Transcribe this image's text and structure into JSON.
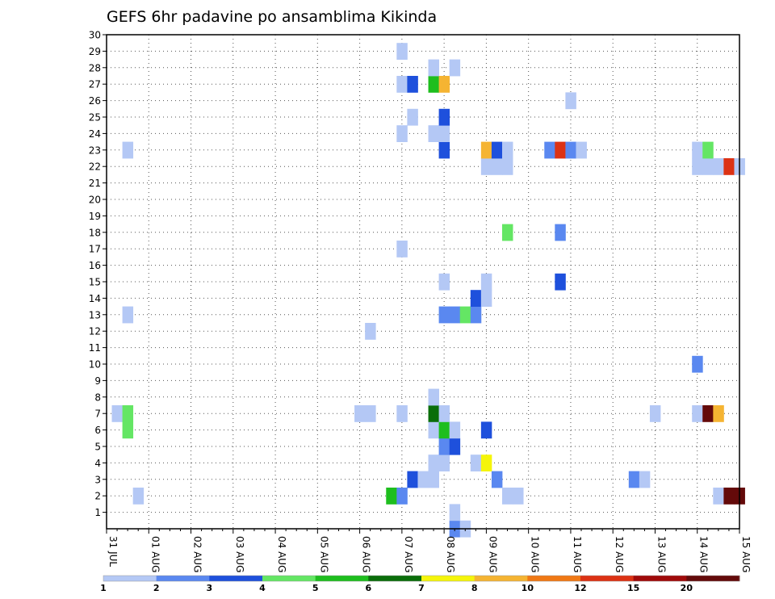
{
  "chart_data": {
    "type": "heatmap",
    "title": "GEFS 6hr padavine po ansamblima Kikinda",
    "xlabel": "",
    "ylabel": "",
    "x_tick_labels": [
      "31 JUL",
      "01 AUG",
      "02 AUG",
      "03 AUG",
      "04 AUG",
      "05 AUG",
      "06 AUG",
      "07 AUG",
      "08 AUG",
      "09 AUG",
      "10 AUG",
      "11 AUG",
      "12 AUG",
      "13 AUG",
      "14 AUG",
      "15 AUG"
    ],
    "y_tick_labels": [
      "1",
      "2",
      "3",
      "4",
      "5",
      "6",
      "7",
      "8",
      "9",
      "10",
      "11",
      "12",
      "13",
      "14",
      "15",
      "16",
      "17",
      "18",
      "19",
      "20",
      "21",
      "22",
      "23",
      "24",
      "25",
      "26",
      "27",
      "28",
      "29",
      "30"
    ],
    "y_range": [
      0,
      30
    ],
    "x_range_steps": [
      0,
      60
    ],
    "grid": true,
    "legend": {
      "placement": "bottom",
      "labels": [
        "1",
        "2",
        "3",
        "4",
        "5",
        "6",
        "7",
        "8",
        "10",
        "12",
        "15",
        "20"
      ],
      "colors": [
        "#b4c8f5",
        "#5a88f0",
        "#1e50dc",
        "#64e664",
        "#1ebe1e",
        "#0a6e0a",
        "#f5f50a",
        "#f5b432",
        "#f07814",
        "#dc3214",
        "#a00a0a",
        "#640a0a"
      ]
    },
    "cells": [
      {
        "step": 1,
        "member": 7,
        "level": 1
      },
      {
        "step": 2,
        "member": 7,
        "level": 4
      },
      {
        "step": 2,
        "member": 6,
        "level": 4
      },
      {
        "step": 2,
        "member": 13,
        "level": 1
      },
      {
        "step": 2,
        "member": 23,
        "level": 1
      },
      {
        "step": 3,
        "member": 2,
        "level": 1
      },
      {
        "step": 24,
        "member": 7,
        "level": 1
      },
      {
        "step": 25,
        "member": 7,
        "level": 1
      },
      {
        "step": 25,
        "member": 12,
        "level": 1
      },
      {
        "step": 27,
        "member": 2,
        "level": 5
      },
      {
        "step": 28,
        "member": 2,
        "level": 2
      },
      {
        "step": 28,
        "member": 7,
        "level": 1
      },
      {
        "step": 28,
        "member": 17,
        "level": 1
      },
      {
        "step": 28,
        "member": 24,
        "level": 1
      },
      {
        "step": 28,
        "member": 27,
        "level": 1
      },
      {
        "step": 28,
        "member": 29,
        "level": 1
      },
      {
        "step": 29,
        "member": 3,
        "level": 3
      },
      {
        "step": 29,
        "member": 25,
        "level": 1
      },
      {
        "step": 29,
        "member": 27,
        "level": 3
      },
      {
        "step": 30,
        "member": 3,
        "level": 1
      },
      {
        "step": 31,
        "member": 3,
        "level": 1
      },
      {
        "step": 31,
        "member": 4,
        "level": 1
      },
      {
        "step": 31,
        "member": 6,
        "level": 1
      },
      {
        "step": 31,
        "member": 7,
        "level": 6
      },
      {
        "step": 31,
        "member": 8,
        "level": 1
      },
      {
        "step": 31,
        "member": 24,
        "level": 1
      },
      {
        "step": 31,
        "member": 27,
        "level": 5
      },
      {
        "step": 31,
        "member": 28,
        "level": 1
      },
      {
        "step": 32,
        "member": 4,
        "level": 1
      },
      {
        "step": 32,
        "member": 5,
        "level": 2
      },
      {
        "step": 32,
        "member": 6,
        "level": 5
      },
      {
        "step": 32,
        "member": 7,
        "level": 1
      },
      {
        "step": 32,
        "member": 13,
        "level": 2
      },
      {
        "step": 32,
        "member": 15,
        "level": 1
      },
      {
        "step": 32,
        "member": 23,
        "level": 3
      },
      {
        "step": 32,
        "member": 24,
        "level": 1
      },
      {
        "step": 32,
        "member": 25,
        "level": 3
      },
      {
        "step": 32,
        "member": 27,
        "level": 8
      },
      {
        "step": 33,
        "member": 0,
        "level": 2
      },
      {
        "step": 33,
        "member": 1,
        "level": 1
      },
      {
        "step": 33,
        "member": 5,
        "level": 3
      },
      {
        "step": 33,
        "member": 6,
        "level": 1
      },
      {
        "step": 33,
        "member": 13,
        "level": 2
      },
      {
        "step": 33,
        "member": 28,
        "level": 1
      },
      {
        "step": 34,
        "member": 0,
        "level": 1
      },
      {
        "step": 34,
        "member": 13,
        "level": 4
      },
      {
        "step": 35,
        "member": 4,
        "level": 1
      },
      {
        "step": 35,
        "member": 13,
        "level": 2
      },
      {
        "step": 35,
        "member": 14,
        "level": 3
      },
      {
        "step": 36,
        "member": 4,
        "level": 7
      },
      {
        "step": 36,
        "member": 6,
        "level": 3
      },
      {
        "step": 36,
        "member": 14,
        "level": 1
      },
      {
        "step": 36,
        "member": 15,
        "level": 1
      },
      {
        "step": 36,
        "member": 22,
        "level": 1
      },
      {
        "step": 36,
        "member": 23,
        "level": 8
      },
      {
        "step": 37,
        "member": 3,
        "level": 2
      },
      {
        "step": 37,
        "member": 22,
        "level": 1
      },
      {
        "step": 37,
        "member": 23,
        "level": 3
      },
      {
        "step": 38,
        "member": 2,
        "level": 1
      },
      {
        "step": 38,
        "member": 18,
        "level": 4
      },
      {
        "step": 38,
        "member": 22,
        "level": 1
      },
      {
        "step": 38,
        "member": 23,
        "level": 1
      },
      {
        "step": 39,
        "member": 2,
        "level": 1
      },
      {
        "step": 42,
        "member": 23,
        "level": 2
      },
      {
        "step": 43,
        "member": 15,
        "level": 3
      },
      {
        "step": 43,
        "member": 18,
        "level": 2
      },
      {
        "step": 43,
        "member": 23,
        "level": 10
      },
      {
        "step": 44,
        "member": 23,
        "level": 2
      },
      {
        "step": 44,
        "member": 26,
        "level": 1
      },
      {
        "step": 45,
        "member": 23,
        "level": 1
      },
      {
        "step": 50,
        "member": 3,
        "level": 2
      },
      {
        "step": 51,
        "member": 3,
        "level": 1
      },
      {
        "step": 52,
        "member": 7,
        "level": 1
      },
      {
        "step": 56,
        "member": 7,
        "level": 1
      },
      {
        "step": 56,
        "member": 10,
        "level": 2
      },
      {
        "step": 56,
        "member": 22,
        "level": 1
      },
      {
        "step": 56,
        "member": 23,
        "level": 1
      },
      {
        "step": 57,
        "member": 7,
        "level": 12
      },
      {
        "step": 57,
        "member": 22,
        "level": 1
      },
      {
        "step": 57,
        "member": 23,
        "level": 4
      },
      {
        "step": 58,
        "member": 2,
        "level": 1
      },
      {
        "step": 58,
        "member": 7,
        "level": 8
      },
      {
        "step": 58,
        "member": 22,
        "level": 1
      },
      {
        "step": 59,
        "member": 2,
        "level": 12
      },
      {
        "step": 59,
        "member": 22,
        "level": 10
      },
      {
        "step": 60,
        "member": 2,
        "level": 12
      },
      {
        "step": 60,
        "member": 22,
        "level": 1
      }
    ]
  }
}
